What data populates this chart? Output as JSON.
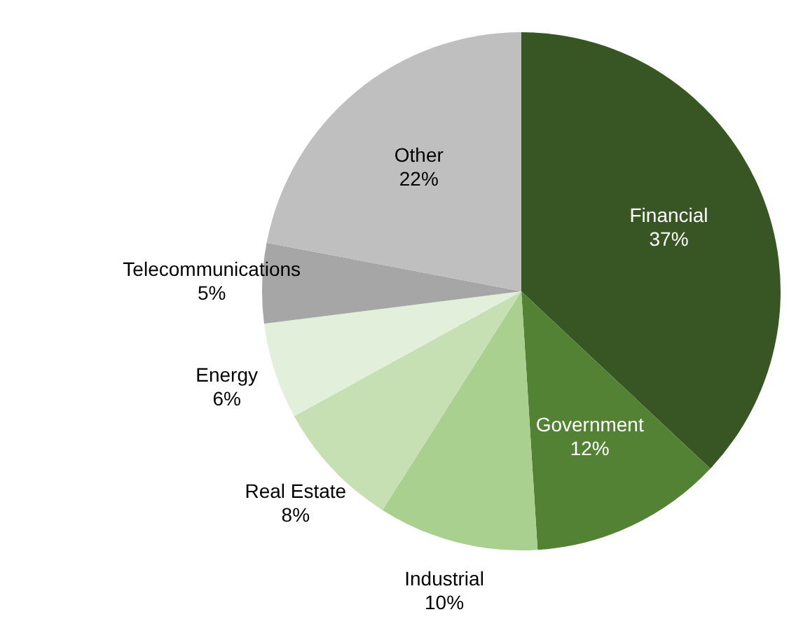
{
  "chart_data": {
    "type": "pie",
    "categories": [
      "Financial",
      "Government",
      "Industrial",
      "Real Estate",
      "Energy",
      "Telecommunications",
      "Other"
    ],
    "values": [
      37,
      12,
      10,
      8,
      6,
      5,
      22
    ],
    "value_labels": [
      "37%",
      "12%",
      "10%",
      "8%",
      "6%",
      "5%",
      "22%"
    ],
    "colors": [
      "#375623",
      "#548235",
      "#a9d08e",
      "#c6e0b4",
      "#e2efda",
      "#a6a6a6",
      "#bfbfbf"
    ]
  }
}
